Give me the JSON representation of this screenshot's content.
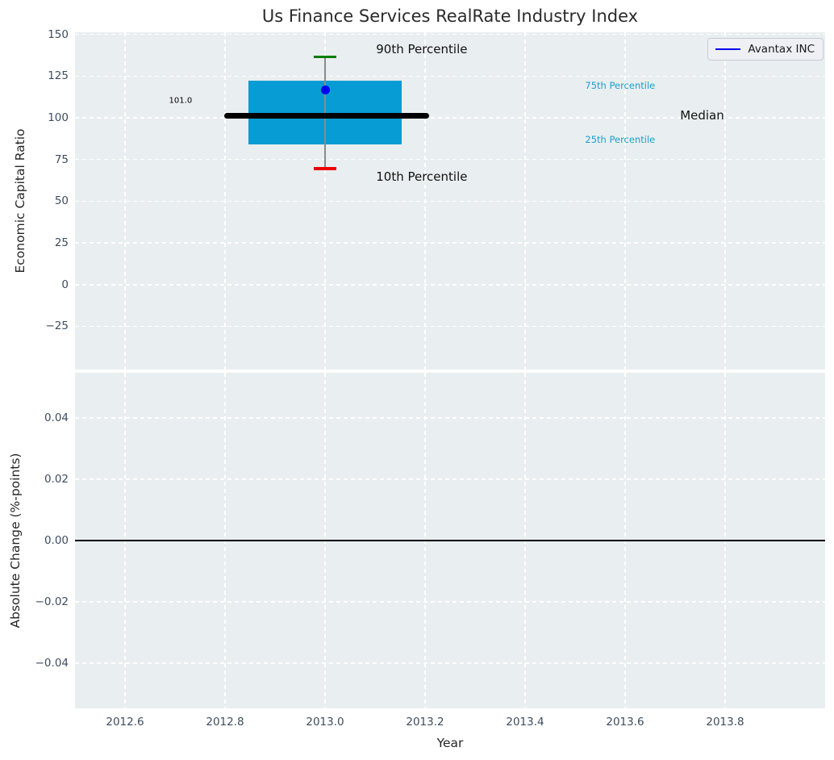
{
  "title": "Us Finance Services RealRate Industry Index",
  "legend": {
    "label": "Avantax INC",
    "position": "upper right",
    "line_color": "#0000ee"
  },
  "colors": {
    "figure_bg": "#ffffff",
    "axes_bg": "#e9eef0",
    "grid": "#ffffff",
    "box_fill": "#079cd3",
    "median_line": "#000000",
    "whisker": "#8a8a8a",
    "cap_90th": "#007d00",
    "cap_10th": "#ee0000",
    "company_dot": "#0000ee",
    "tick_label": "#3e4c60",
    "axis_label": "#262626",
    "title_color": "#2b2b2b",
    "percentile_label": "#1b9fce",
    "zero_line": "#000000"
  },
  "chart_data": [
    {
      "type": "box",
      "title": "Us Finance Services RealRate Industry Index",
      "ylabel": "Economic Capital Ratio",
      "xlim": [
        2012.5,
        2014.0
      ],
      "ylim": [
        -50.9,
        151.3
      ],
      "grid": true,
      "legend_entries": [
        "Avantax INC"
      ],
      "yticks": [
        {
          "v": 150,
          "label": "150"
        },
        {
          "v": 125,
          "label": "125"
        },
        {
          "v": 100,
          "label": "100"
        },
        {
          "v": 75,
          "label": "75"
        },
        {
          "v": 50,
          "label": "50"
        },
        {
          "v": 25,
          "label": "25"
        },
        {
          "v": 0,
          "label": "0"
        },
        {
          "v": -25,
          "label": "−25"
        }
      ],
      "xtick_values": [
        2012.6,
        2012.8,
        2013.0,
        2013.2,
        2013.4,
        2013.6,
        2013.8
      ],
      "box": {
        "x": 2013.0,
        "box_halfwidth": 0.153,
        "cap_halfwidth": 0.023,
        "median_extent": [
          2012.798,
          2013.208
        ],
        "p10": 69.5,
        "p25": 84.0,
        "median": 101.0,
        "p75": 122.5,
        "p90": 136.5,
        "company_value": 116.5,
        "median_label": "101.0"
      },
      "annotations": [
        {
          "name": "median-value-label",
          "text": "101.0",
          "x": 2012.688,
          "y": 110.0,
          "size": 10,
          "color": "#000000"
        },
        {
          "name": "p90-annotation",
          "text": "90th Percentile",
          "x": 2013.102,
          "y": 141.0,
          "size": 15,
          "color": "#111111"
        },
        {
          "name": "p10-annotation",
          "text": "10th Percentile",
          "x": 2013.102,
          "y": 64.5,
          "size": 15,
          "color": "#111111"
        },
        {
          "name": "p75-annotation",
          "text": "75th Percentile",
          "x": 2013.52,
          "y": 119.5,
          "size": 11.5,
          "color": "#1b9fce"
        },
        {
          "name": "median-annotation",
          "text": "Median",
          "x": 2013.71,
          "y": 101.5,
          "size": 15,
          "color": "#111111"
        },
        {
          "name": "p25-annotation",
          "text": "25th Percentile",
          "x": 2013.52,
          "y": 87.0,
          "size": 11.5,
          "color": "#1b9fce"
        }
      ]
    },
    {
      "type": "line",
      "ylabel": "Absolute Change (%-points)",
      "xlabel": "Year",
      "xlim": [
        2012.5,
        2014.0
      ],
      "ylim": [
        -0.0547,
        0.0547
      ],
      "grid": true,
      "zero_line": 0.0,
      "yticks": [
        {
          "v": 0.04,
          "label": "0.04"
        },
        {
          "v": 0.02,
          "label": "0.02"
        },
        {
          "v": 0.0,
          "label": "0.00"
        },
        {
          "v": -0.02,
          "label": "−0.02"
        },
        {
          "v": -0.04,
          "label": "−0.04"
        }
      ],
      "xticks": [
        {
          "v": 2012.6,
          "label": "2012.6"
        },
        {
          "v": 2012.8,
          "label": "2012.8"
        },
        {
          "v": 2013.0,
          "label": "2013.0"
        },
        {
          "v": 2013.2,
          "label": "2013.2"
        },
        {
          "v": 2013.4,
          "label": "2013.4"
        },
        {
          "v": 2013.6,
          "label": "2013.6"
        },
        {
          "v": 2013.8,
          "label": "2013.8"
        }
      ]
    }
  ]
}
